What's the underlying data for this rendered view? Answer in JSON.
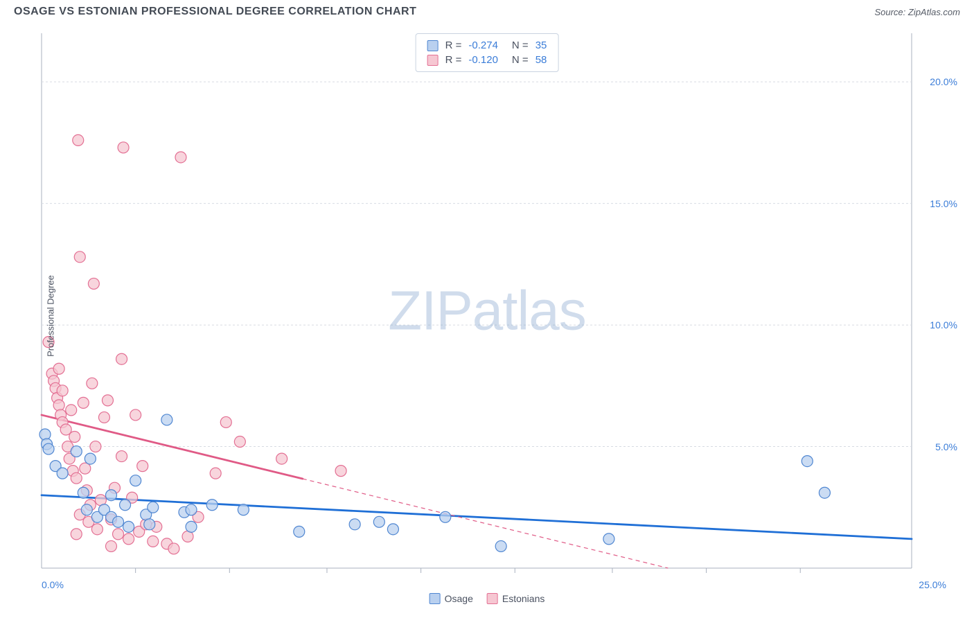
{
  "title": "OSAGE VS ESTONIAN PROFESSIONAL DEGREE CORRELATION CHART",
  "source_prefix": "Source: ",
  "source_name": "ZipAtlas.com",
  "watermark_a": "ZIP",
  "watermark_b": "atlas",
  "ylabel": "Professional Degree",
  "chart": {
    "type": "scatter",
    "background_color": "#ffffff",
    "grid_color": "#d7dbe2",
    "grid_dash": "3,3",
    "axis_color": "#a9b1bf",
    "xlim": [
      0,
      25
    ],
    "ylim": [
      0,
      22
    ],
    "x_ticks_minor": [
      2.7,
      5.4,
      8.2,
      10.9,
      13.6,
      16.4,
      19.1,
      21.8
    ],
    "x_tick_labels": {
      "left": "0.0%",
      "right": "25.0%"
    },
    "y_ticks": [
      {
        "v": 5,
        "label": "5.0%"
      },
      {
        "v": 10,
        "label": "10.0%"
      },
      {
        "v": 15,
        "label": "15.0%"
      },
      {
        "v": 20,
        "label": "20.0%"
      }
    ],
    "marker_radius": 8,
    "marker_stroke_width": 1.2,
    "trend_width_solid": 2.8,
    "trend_width_dash": 1.2,
    "trend_dash": "6,5",
    "series": [
      {
        "key": "osage",
        "label": "Osage",
        "fill": "#b9d0ef",
        "stroke": "#4f86d1",
        "fill_opacity": 0.75,
        "R": "-0.274",
        "N": "35",
        "trend": {
          "x1": 0,
          "y1": 3.0,
          "x2": 25,
          "y2": 1.2,
          "solid_until_x": 25,
          "color": "#1f6fd6"
        },
        "points": [
          [
            0.1,
            5.5
          ],
          [
            0.15,
            5.1
          ],
          [
            0.2,
            4.9
          ],
          [
            0.4,
            4.2
          ],
          [
            0.6,
            3.9
          ],
          [
            1.0,
            4.8
          ],
          [
            1.2,
            3.1
          ],
          [
            1.3,
            2.4
          ],
          [
            1.4,
            4.5
          ],
          [
            1.6,
            2.1
          ],
          [
            1.8,
            2.4
          ],
          [
            2.0,
            2.1
          ],
          [
            2.0,
            3.0
          ],
          [
            2.2,
            1.9
          ],
          [
            2.4,
            2.6
          ],
          [
            2.5,
            1.7
          ],
          [
            2.7,
            3.6
          ],
          [
            3.0,
            2.2
          ],
          [
            3.1,
            1.8
          ],
          [
            3.2,
            2.5
          ],
          [
            3.6,
            6.1
          ],
          [
            4.1,
            2.3
          ],
          [
            4.3,
            1.7
          ],
          [
            4.3,
            2.4
          ],
          [
            4.9,
            2.6
          ],
          [
            5.8,
            2.4
          ],
          [
            7.4,
            1.5
          ],
          [
            9.0,
            1.8
          ],
          [
            9.7,
            1.9
          ],
          [
            10.1,
            1.6
          ],
          [
            11.6,
            2.1
          ],
          [
            13.2,
            0.9
          ],
          [
            16.3,
            1.2
          ],
          [
            22.0,
            4.4
          ],
          [
            22.5,
            3.1
          ]
        ]
      },
      {
        "key": "estonians",
        "label": "Estonians",
        "fill": "#f6c7d2",
        "stroke": "#e36f93",
        "fill_opacity": 0.75,
        "R": "-0.120",
        "N": "58",
        "trend": {
          "x1": 0,
          "y1": 6.3,
          "x2": 18,
          "y2": 0.0,
          "solid_until_x": 7.5,
          "color": "#e05a86"
        },
        "points": [
          [
            0.2,
            9.3
          ],
          [
            0.3,
            8.0
          ],
          [
            0.35,
            7.7
          ],
          [
            0.4,
            7.4
          ],
          [
            0.45,
            7.0
          ],
          [
            0.5,
            8.2
          ],
          [
            0.5,
            6.7
          ],
          [
            0.55,
            6.3
          ],
          [
            0.6,
            6.0
          ],
          [
            0.6,
            7.3
          ],
          [
            0.7,
            5.7
          ],
          [
            0.75,
            5.0
          ],
          [
            0.8,
            4.5
          ],
          [
            0.85,
            6.5
          ],
          [
            0.9,
            4.0
          ],
          [
            0.95,
            5.4
          ],
          [
            1.0,
            3.7
          ],
          [
            1.05,
            17.6
          ],
          [
            1.1,
            12.8
          ],
          [
            1.1,
            2.2
          ],
          [
            1.2,
            6.8
          ],
          [
            1.25,
            4.1
          ],
          [
            1.3,
            3.2
          ],
          [
            1.35,
            1.9
          ],
          [
            1.4,
            2.6
          ],
          [
            1.45,
            7.6
          ],
          [
            1.5,
            11.7
          ],
          [
            1.55,
            5.0
          ],
          [
            1.6,
            1.6
          ],
          [
            1.7,
            2.8
          ],
          [
            1.8,
            6.2
          ],
          [
            1.9,
            6.9
          ],
          [
            2.0,
            2.0
          ],
          [
            2.1,
            3.3
          ],
          [
            2.2,
            1.4
          ],
          [
            2.3,
            8.6
          ],
          [
            2.3,
            4.6
          ],
          [
            2.35,
            17.3
          ],
          [
            2.5,
            1.2
          ],
          [
            2.6,
            2.9
          ],
          [
            2.7,
            6.3
          ],
          [
            2.8,
            1.5
          ],
          [
            2.9,
            4.2
          ],
          [
            3.0,
            1.8
          ],
          [
            3.2,
            1.1
          ],
          [
            3.3,
            1.7
          ],
          [
            3.6,
            1.0
          ],
          [
            4.0,
            16.9
          ],
          [
            4.2,
            1.3
          ],
          [
            4.5,
            2.1
          ],
          [
            5.0,
            3.9
          ],
          [
            5.3,
            6.0
          ],
          [
            5.7,
            5.2
          ],
          [
            6.9,
            4.5
          ],
          [
            8.6,
            4.0
          ],
          [
            3.8,
            0.8
          ],
          [
            2.0,
            0.9
          ],
          [
            1.0,
            1.4
          ]
        ]
      }
    ]
  },
  "stat_labels": {
    "R": "R =",
    "N": "N ="
  },
  "legend_bottom": [
    {
      "key": "osage",
      "label": "Osage"
    },
    {
      "key": "estonians",
      "label": "Estonians"
    }
  ]
}
